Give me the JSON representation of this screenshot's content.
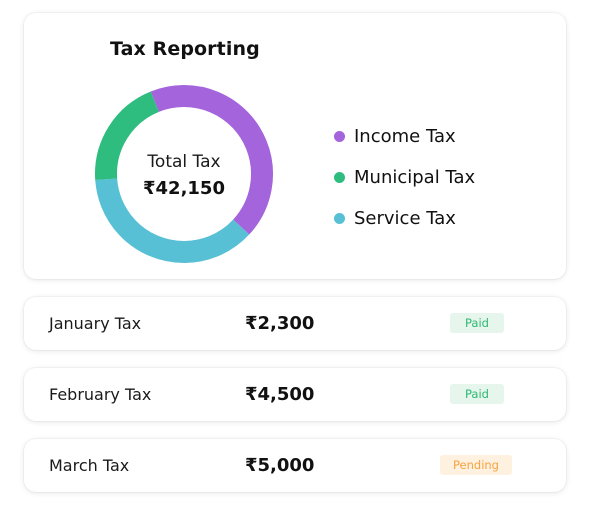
{
  "summary": {
    "title": "Tax Reporting",
    "center_label": "Total Tax",
    "center_value": "₹42,150",
    "legend": [
      {
        "label": "Income Tax",
        "color": "#a464dc"
      },
      {
        "label": "Municipal Tax",
        "color": "#2fbd7f"
      },
      {
        "label": "Service Tax",
        "color": "#58c0d4"
      }
    ],
    "segments": [
      {
        "name": "Income Tax",
        "fraction": 0.43,
        "color": "#a464dc"
      },
      {
        "name": "Service Tax",
        "fraction": 0.37,
        "color": "#58c0d4"
      },
      {
        "name": "Municipal Tax",
        "fraction": 0.2,
        "color": "#2fbd7f"
      }
    ]
  },
  "rows": [
    {
      "label": "January Tax",
      "amount": "₹2,300",
      "status": "Paid"
    },
    {
      "label": "February Tax",
      "amount": "₹4,500",
      "status": "Paid"
    },
    {
      "label": "March Tax",
      "amount": "₹5,000",
      "status": "Pending"
    }
  ]
}
